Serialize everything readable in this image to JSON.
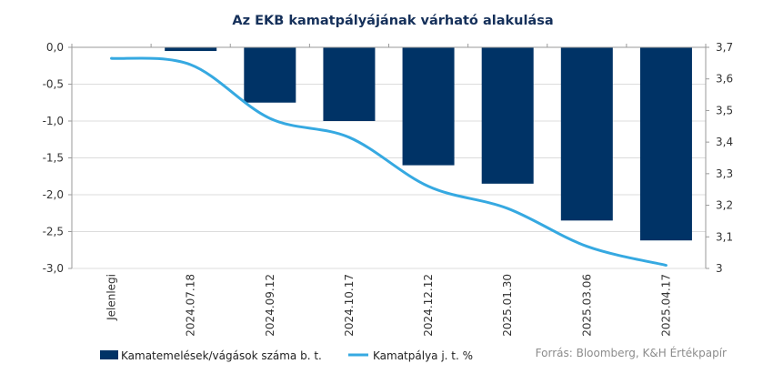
{
  "chart_data": {
    "type": "bar",
    "title": "Az EKB kamatpályájának várható alakulása",
    "categories": [
      "Jelenlegi",
      "2024.07.18",
      "2024.09.12",
      "2024.10.17",
      "2024.12.12",
      "2025.01.30",
      "2025.03.06",
      "2025.04.17"
    ],
    "series": [
      {
        "name": "Kamatemelések/vágások száma b. t.",
        "type": "bar",
        "axis": "left",
        "color": "#003366",
        "values": [
          0,
          -0.05,
          -0.75,
          -1.0,
          -1.6,
          -1.85,
          -2.35,
          -2.62
        ]
      },
      {
        "name": "Kamatpálya j. t. %",
        "type": "line",
        "axis": "right",
        "color": "#36a9e1",
        "values": [
          3.665,
          3.645,
          3.475,
          3.415,
          3.26,
          3.19,
          3.07,
          3.01
        ]
      }
    ],
    "y_left": {
      "ylim": [
        -3.0,
        0.0
      ],
      "ticks": [
        "0,0",
        "-0,5",
        "-1,0",
        "-1,5",
        "-2,0",
        "-2,5",
        "-3,0"
      ]
    },
    "y_right": {
      "ylim": [
        3.0,
        3.7
      ],
      "ticks": [
        "3,7",
        "3,6",
        "3,5",
        "3,4",
        "3,3",
        "3,2",
        "3,1",
        "3"
      ]
    },
    "grid": true,
    "legend_position": "bottom-left",
    "source": "Forrás: Bloomberg,  K&H Értékpapír"
  }
}
